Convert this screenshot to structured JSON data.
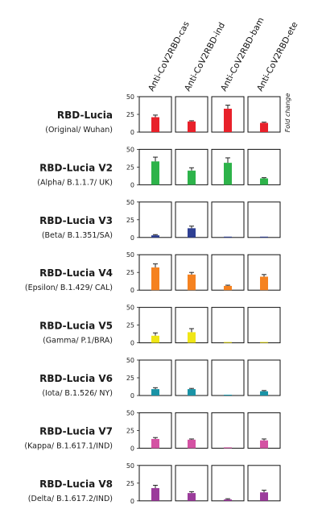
{
  "chart_data": {
    "type": "bar",
    "figure": "small multiples",
    "ylim": [
      0,
      50
    ],
    "yticks": [
      0,
      25,
      50
    ],
    "ylabel": "Fold change",
    "grid": false,
    "antibodies": [
      "Anti-CoV2RBD-cas",
      "Anti-CoV2RBD-ind",
      "Anti-CoV2RBD-bam",
      "Anti-CoV2RBD-ete"
    ],
    "rows": [
      {
        "name": "RBD-Lucia",
        "subtitle": "(Original/ Wuhan)",
        "color": "#e8212a",
        "values": [
          21,
          15,
          33,
          13
        ],
        "errors": [
          3,
          1,
          5,
          1
        ]
      },
      {
        "name": "RBD-Lucia V2",
        "subtitle": "(Alpha/ B.1.1.7/ UK)",
        "color": "#2db34a",
        "values": [
          33,
          20,
          31,
          9
        ],
        "errors": [
          6,
          4,
          7,
          1
        ]
      },
      {
        "name": "RBD-Lucia V3",
        "subtitle": "(Beta/ B.1.351/SA)",
        "color": "#2e3f93",
        "values": [
          3,
          13,
          0.5,
          0.5
        ],
        "errors": [
          1,
          3,
          0,
          0
        ]
      },
      {
        "name": "RBD-Lucia V4",
        "subtitle": "(Epsilon/ B.1.429/ CAL)",
        "color": "#f58220",
        "values": [
          32,
          22,
          6,
          19
        ],
        "errors": [
          5,
          3,
          1,
          3
        ]
      },
      {
        "name": "RBD-Lucia V5",
        "subtitle": "(Gamma/ P.1/BRA)",
        "color": "#f0e616",
        "values": [
          10,
          15,
          0.5,
          0.5
        ],
        "errors": [
          4,
          5,
          0,
          0
        ]
      },
      {
        "name": "RBD-Lucia V6",
        "subtitle": "(Iota/ B.1.526/ NY)",
        "color": "#1a93a6",
        "values": [
          9,
          9,
          0.5,
          6
        ],
        "errors": [
          2,
          1,
          0,
          1
        ]
      },
      {
        "name": "RBD-Lucia V7",
        "subtitle": "(Kappa/ B.1.617.1/IND)",
        "color": "#d452a3",
        "values": [
          13,
          12,
          0.5,
          11
        ],
        "errors": [
          2,
          1,
          0,
          2
        ]
      },
      {
        "name": "RBD-Lucia V8",
        "subtitle": "(Delta/ B.1.617.2/IND)",
        "color": "#9b3c9b",
        "values": [
          18,
          11,
          2,
          12
        ],
        "errors": [
          4,
          2,
          1,
          3
        ]
      }
    ]
  }
}
